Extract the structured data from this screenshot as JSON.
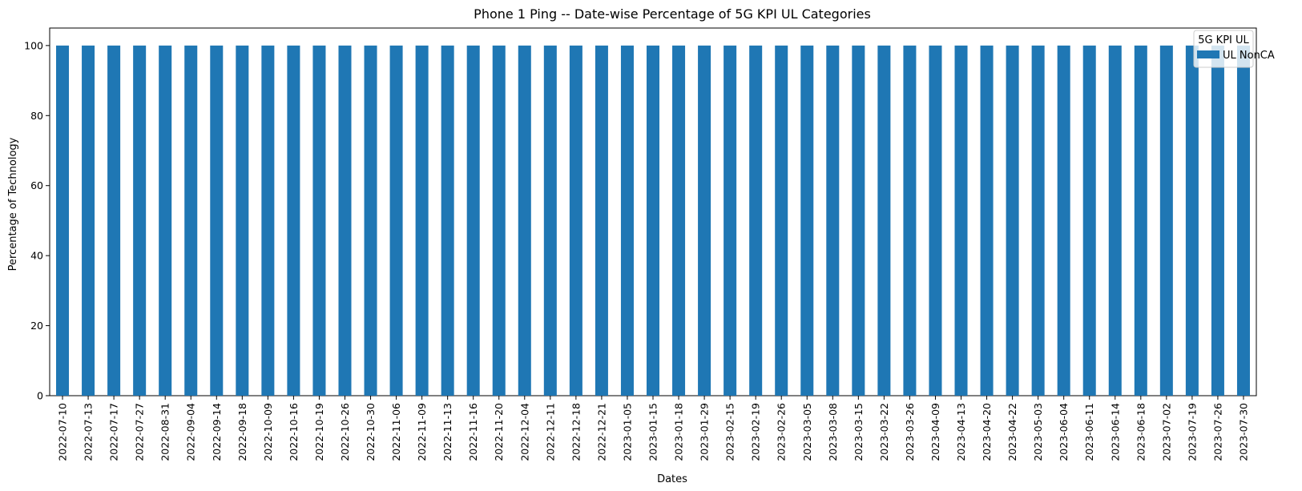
{
  "chart_data": {
    "type": "bar",
    "title": "Phone 1 Ping -- Date-wise Percentage of 5G KPI UL Categories",
    "xlabel": "Dates",
    "ylabel": "Percentage of Technology",
    "ylim": [
      0,
      105
    ],
    "yticks": [
      0,
      20,
      40,
      60,
      80,
      100
    ],
    "grid": false,
    "legend": {
      "title": "5G KPI UL",
      "placement": "top-right"
    },
    "categories": [
      "2022-07-10",
      "2022-07-13",
      "2022-07-17",
      "2022-07-27",
      "2022-08-31",
      "2022-09-04",
      "2022-09-14",
      "2022-09-18",
      "2022-10-09",
      "2022-10-16",
      "2022-10-19",
      "2022-10-26",
      "2022-10-30",
      "2022-11-06",
      "2022-11-09",
      "2022-11-13",
      "2022-11-16",
      "2022-11-20",
      "2022-12-04",
      "2022-12-11",
      "2022-12-18",
      "2022-12-21",
      "2023-01-05",
      "2023-01-15",
      "2023-01-18",
      "2023-01-29",
      "2023-02-15",
      "2023-02-19",
      "2023-02-26",
      "2023-03-05",
      "2023-03-08",
      "2023-03-15",
      "2023-03-22",
      "2023-03-26",
      "2023-04-09",
      "2023-04-13",
      "2023-04-20",
      "2023-04-22",
      "2023-05-03",
      "2023-06-04",
      "2023-06-11",
      "2023-06-14",
      "2023-06-18",
      "2023-07-02",
      "2023-07-19",
      "2023-07-26",
      "2023-07-30"
    ],
    "series": [
      {
        "name": "UL NonCA",
        "color": "#1f77b4",
        "values": [
          100,
          100,
          100,
          100,
          100,
          100,
          100,
          100,
          100,
          100,
          100,
          100,
          100,
          100,
          100,
          100,
          100,
          100,
          100,
          100,
          100,
          100,
          100,
          100,
          100,
          100,
          100,
          100,
          100,
          100,
          100,
          100,
          100,
          100,
          100,
          100,
          100,
          100,
          100,
          100,
          100,
          100,
          100,
          100,
          100,
          100,
          100
        ]
      }
    ]
  }
}
